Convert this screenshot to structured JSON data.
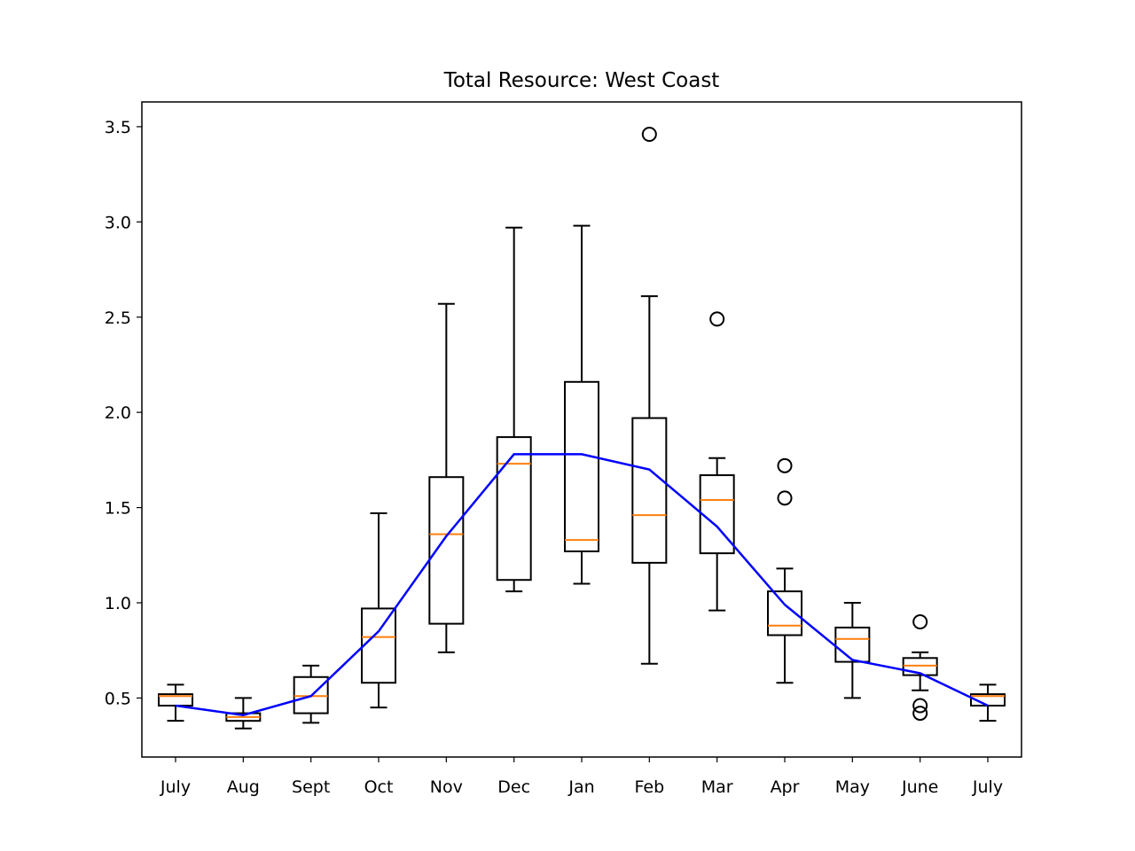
{
  "chart_data": {
    "type": "box",
    "title": "Total Resource: West Coast",
    "xlabel": "",
    "ylabel": "",
    "ylim": [
      0.19,
      3.63
    ],
    "yticks": [
      "0.5",
      "1.0",
      "1.5",
      "2.0",
      "2.5",
      "3.0",
      "3.5"
    ],
    "categories": [
      "July",
      "Aug",
      "Sept",
      "Oct",
      "Nov",
      "Dec",
      "Jan",
      "Feb",
      "Mar",
      "Apr",
      "May",
      "June",
      "July"
    ],
    "boxes": [
      {
        "whislo": 0.38,
        "q1": 0.46,
        "med": 0.51,
        "q3": 0.52,
        "whishi": 0.57,
        "fliers": []
      },
      {
        "whislo": 0.34,
        "q1": 0.38,
        "med": 0.4,
        "q3": 0.42,
        "whishi": 0.5,
        "fliers": []
      },
      {
        "whislo": 0.37,
        "q1": 0.42,
        "med": 0.51,
        "q3": 0.61,
        "whishi": 0.67,
        "fliers": []
      },
      {
        "whislo": 0.45,
        "q1": 0.58,
        "med": 0.82,
        "q3": 0.97,
        "whishi": 1.47,
        "fliers": []
      },
      {
        "whislo": 0.74,
        "q1": 0.89,
        "med": 1.36,
        "q3": 1.66,
        "whishi": 2.57,
        "fliers": []
      },
      {
        "whislo": 1.06,
        "q1": 1.12,
        "med": 1.73,
        "q3": 1.87,
        "whishi": 2.97,
        "fliers": []
      },
      {
        "whislo": 1.1,
        "q1": 1.27,
        "med": 1.33,
        "q3": 2.16,
        "whishi": 2.98,
        "fliers": []
      },
      {
        "whislo": 0.68,
        "q1": 1.21,
        "med": 1.46,
        "q3": 1.97,
        "whishi": 2.61,
        "fliers": [
          3.46
        ]
      },
      {
        "whislo": 0.96,
        "q1": 1.26,
        "med": 1.54,
        "q3": 1.67,
        "whishi": 1.76,
        "fliers": [
          2.49
        ]
      },
      {
        "whislo": 0.58,
        "q1": 0.83,
        "med": 0.88,
        "q3": 1.06,
        "whishi": 1.18,
        "fliers": [
          1.72,
          1.55
        ]
      },
      {
        "whislo": 0.5,
        "q1": 0.69,
        "med": 0.81,
        "q3": 0.87,
        "whishi": 1.0,
        "fliers": []
      },
      {
        "whislo": 0.54,
        "q1": 0.62,
        "med": 0.67,
        "q3": 0.71,
        "whishi": 0.74,
        "fliers": [
          0.9,
          0.46,
          0.42
        ]
      },
      {
        "whislo": 0.38,
        "q1": 0.46,
        "med": 0.51,
        "q3": 0.52,
        "whishi": 0.57,
        "fliers": []
      }
    ],
    "mean_line": {
      "values": [
        0.46,
        0.41,
        0.51,
        0.85,
        1.35,
        1.78,
        1.78,
        1.7,
        1.4,
        0.99,
        0.7,
        0.63,
        0.46
      ]
    },
    "grid": false,
    "colors": {
      "box": "#000000",
      "median": "#ff7f0e",
      "mean_line": "#0000ff",
      "flier": "#000000"
    }
  }
}
